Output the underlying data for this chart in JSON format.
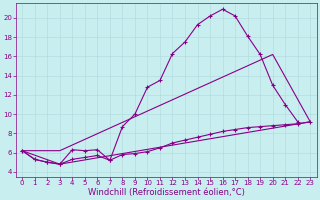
{
  "background_color": "#c8eef0",
  "grid_color": "#b0d8dc",
  "line_color": "#880088",
  "xlim": [
    -0.5,
    23.5
  ],
  "ylim": [
    3.5,
    21.5
  ],
  "yticks": [
    4,
    6,
    8,
    10,
    12,
    14,
    16,
    18,
    20
  ],
  "xticks": [
    0,
    1,
    2,
    3,
    4,
    5,
    6,
    7,
    8,
    9,
    10,
    11,
    12,
    13,
    14,
    15,
    16,
    17,
    18,
    19,
    20,
    21,
    22,
    23
  ],
  "line1_x": [
    0,
    1,
    2,
    3,
    4,
    5,
    6,
    7,
    8,
    9,
    10,
    11,
    12,
    13,
    14,
    15,
    16,
    17,
    18,
    19,
    20,
    21,
    22
  ],
  "line1_y": [
    6.2,
    5.3,
    5.0,
    4.8,
    6.3,
    6.2,
    6.3,
    5.2,
    8.7,
    10.0,
    12.8,
    13.5,
    16.3,
    17.5,
    19.3,
    20.2,
    20.9,
    20.2,
    18.1,
    16.2,
    13.0,
    11.0,
    9.2
  ],
  "line2_x": [
    0,
    1,
    2,
    3,
    4,
    5,
    6,
    7,
    8,
    9,
    10,
    11,
    12,
    13,
    14,
    15,
    16,
    17,
    18,
    19,
    20,
    21,
    22,
    23
  ],
  "line2_y": [
    6.2,
    5.3,
    5.0,
    4.8,
    5.3,
    5.5,
    5.7,
    5.2,
    5.8,
    5.9,
    6.1,
    6.5,
    7.0,
    7.3,
    7.6,
    7.9,
    8.2,
    8.4,
    8.6,
    8.7,
    8.8,
    8.9,
    9.0,
    9.2
  ],
  "line3_x": [
    0,
    3,
    23
  ],
  "line3_y": [
    6.2,
    4.8,
    9.2
  ],
  "line4_x": [
    0,
    3,
    20,
    23
  ],
  "line4_y": [
    6.2,
    6.2,
    16.2,
    9.2
  ],
  "tick_fontsize": 5.0,
  "xlabel_fontsize": 6.0,
  "xlabel": "Windchill (Refroidissement éolien,°C)",
  "linewidth": 0.8,
  "marker": "+",
  "markersize": 3.5,
  "markeredgewidth": 0.8
}
